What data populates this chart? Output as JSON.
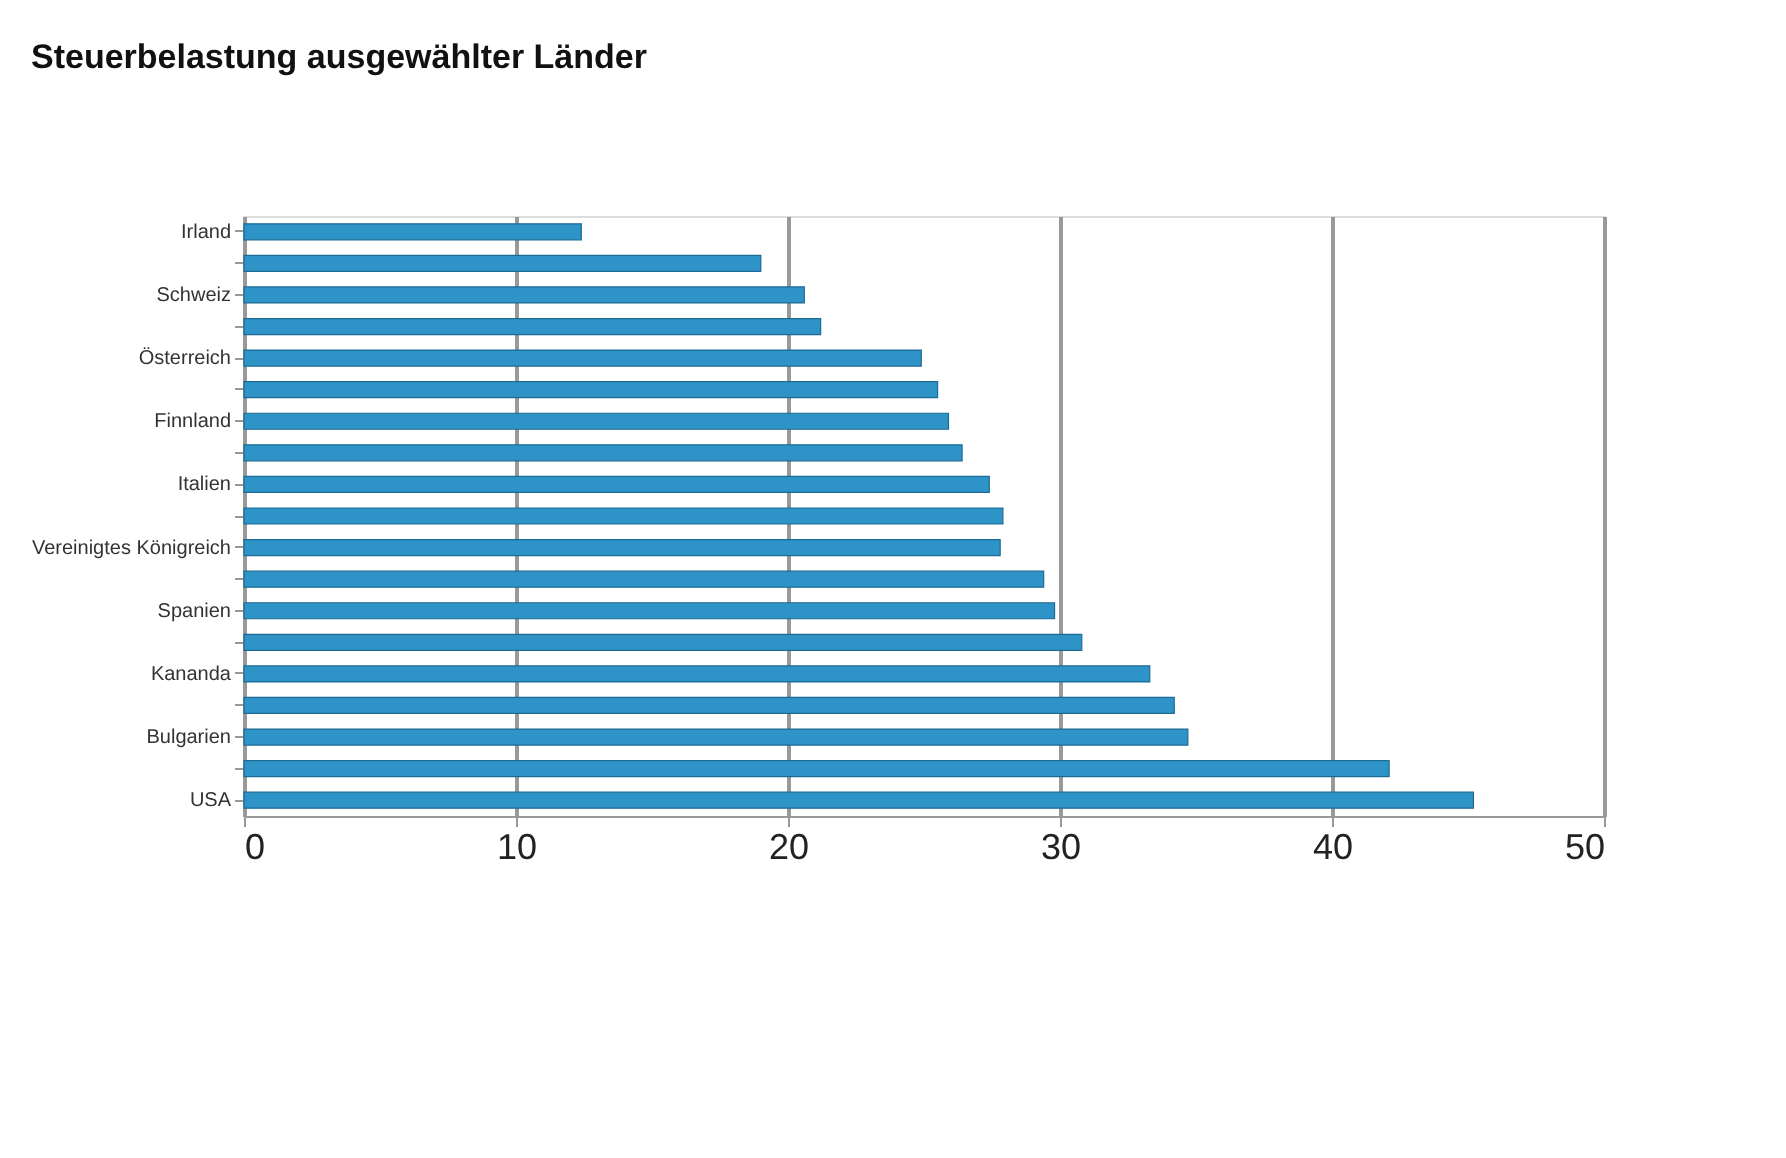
{
  "chart_data": {
    "type": "bar",
    "orientation": "horizontal",
    "title": "Steuerbelastung ausgewählter Länder",
    "categories": [
      "Irland",
      null,
      "Schweiz",
      null,
      "Österreich",
      null,
      "Finnland",
      null,
      "Italien",
      null,
      "Vereinigtes Königreich",
      null,
      "Spanien",
      null,
      "Kananda",
      null,
      "Bulgarien",
      null,
      "USA"
    ],
    "values": [
      12.4,
      19.0,
      20.6,
      21.2,
      24.9,
      25.5,
      25.9,
      26.4,
      27.4,
      27.9,
      27.8,
      29.4,
      29.8,
      30.8,
      33.3,
      34.2,
      34.7,
      42.1,
      45.2
    ],
    "color": "#2e94c8",
    "xlim": [
      0,
      50
    ],
    "xticks": [
      0,
      10,
      20,
      30,
      40,
      50
    ],
    "grid": "x"
  }
}
